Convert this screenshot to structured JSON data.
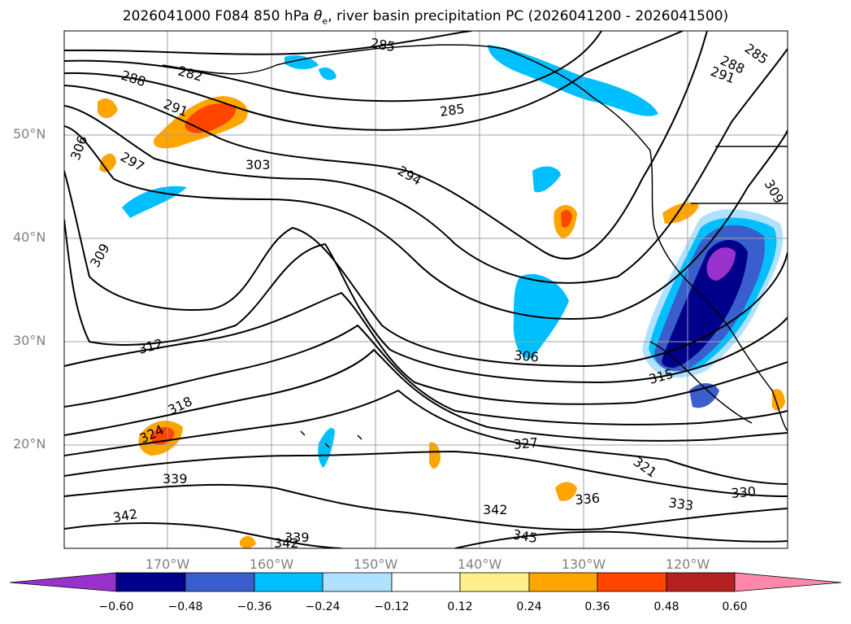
{
  "title": {
    "prefix": "2026041000 F084 850 hPa",
    "theta_symbol": "θ",
    "theta_sub": "e",
    "suffix": ", river basin precipitation PC (2026041200 - 2026041500)"
  },
  "axes": {
    "lat_labels": [
      "50°N",
      "40°N",
      "30°N",
      "20°N"
    ],
    "lon_labels": [
      "170°W",
      "160°W",
      "150°W",
      "140°W",
      "130°W",
      "120°W"
    ]
  },
  "contour_labels": [
    "285",
    "282",
    "288",
    "291",
    "297",
    "306",
    "303",
    "294",
    "285",
    "288",
    "285",
    "291",
    "309",
    "309",
    "312",
    "306",
    "318",
    "315",
    "324",
    "327",
    "321",
    "339",
    "336",
    "333",
    "330",
    "342",
    "342",
    "345",
    "339",
    "342"
  ],
  "colorbar": {
    "ticks": [
      "−0.60",
      "−0.48",
      "−0.36",
      "−0.24",
      "−0.12",
      "0.12",
      "0.24",
      "0.36",
      "0.48",
      "0.60"
    ],
    "colors": [
      "#9932cc",
      "#00008b",
      "#3a5fcd",
      "#00bfff",
      "#b0e2ff",
      "#ffffff",
      "#fff08c",
      "#ffa500",
      "#ff4500",
      "#b22222",
      "#ff88aa"
    ]
  }
}
